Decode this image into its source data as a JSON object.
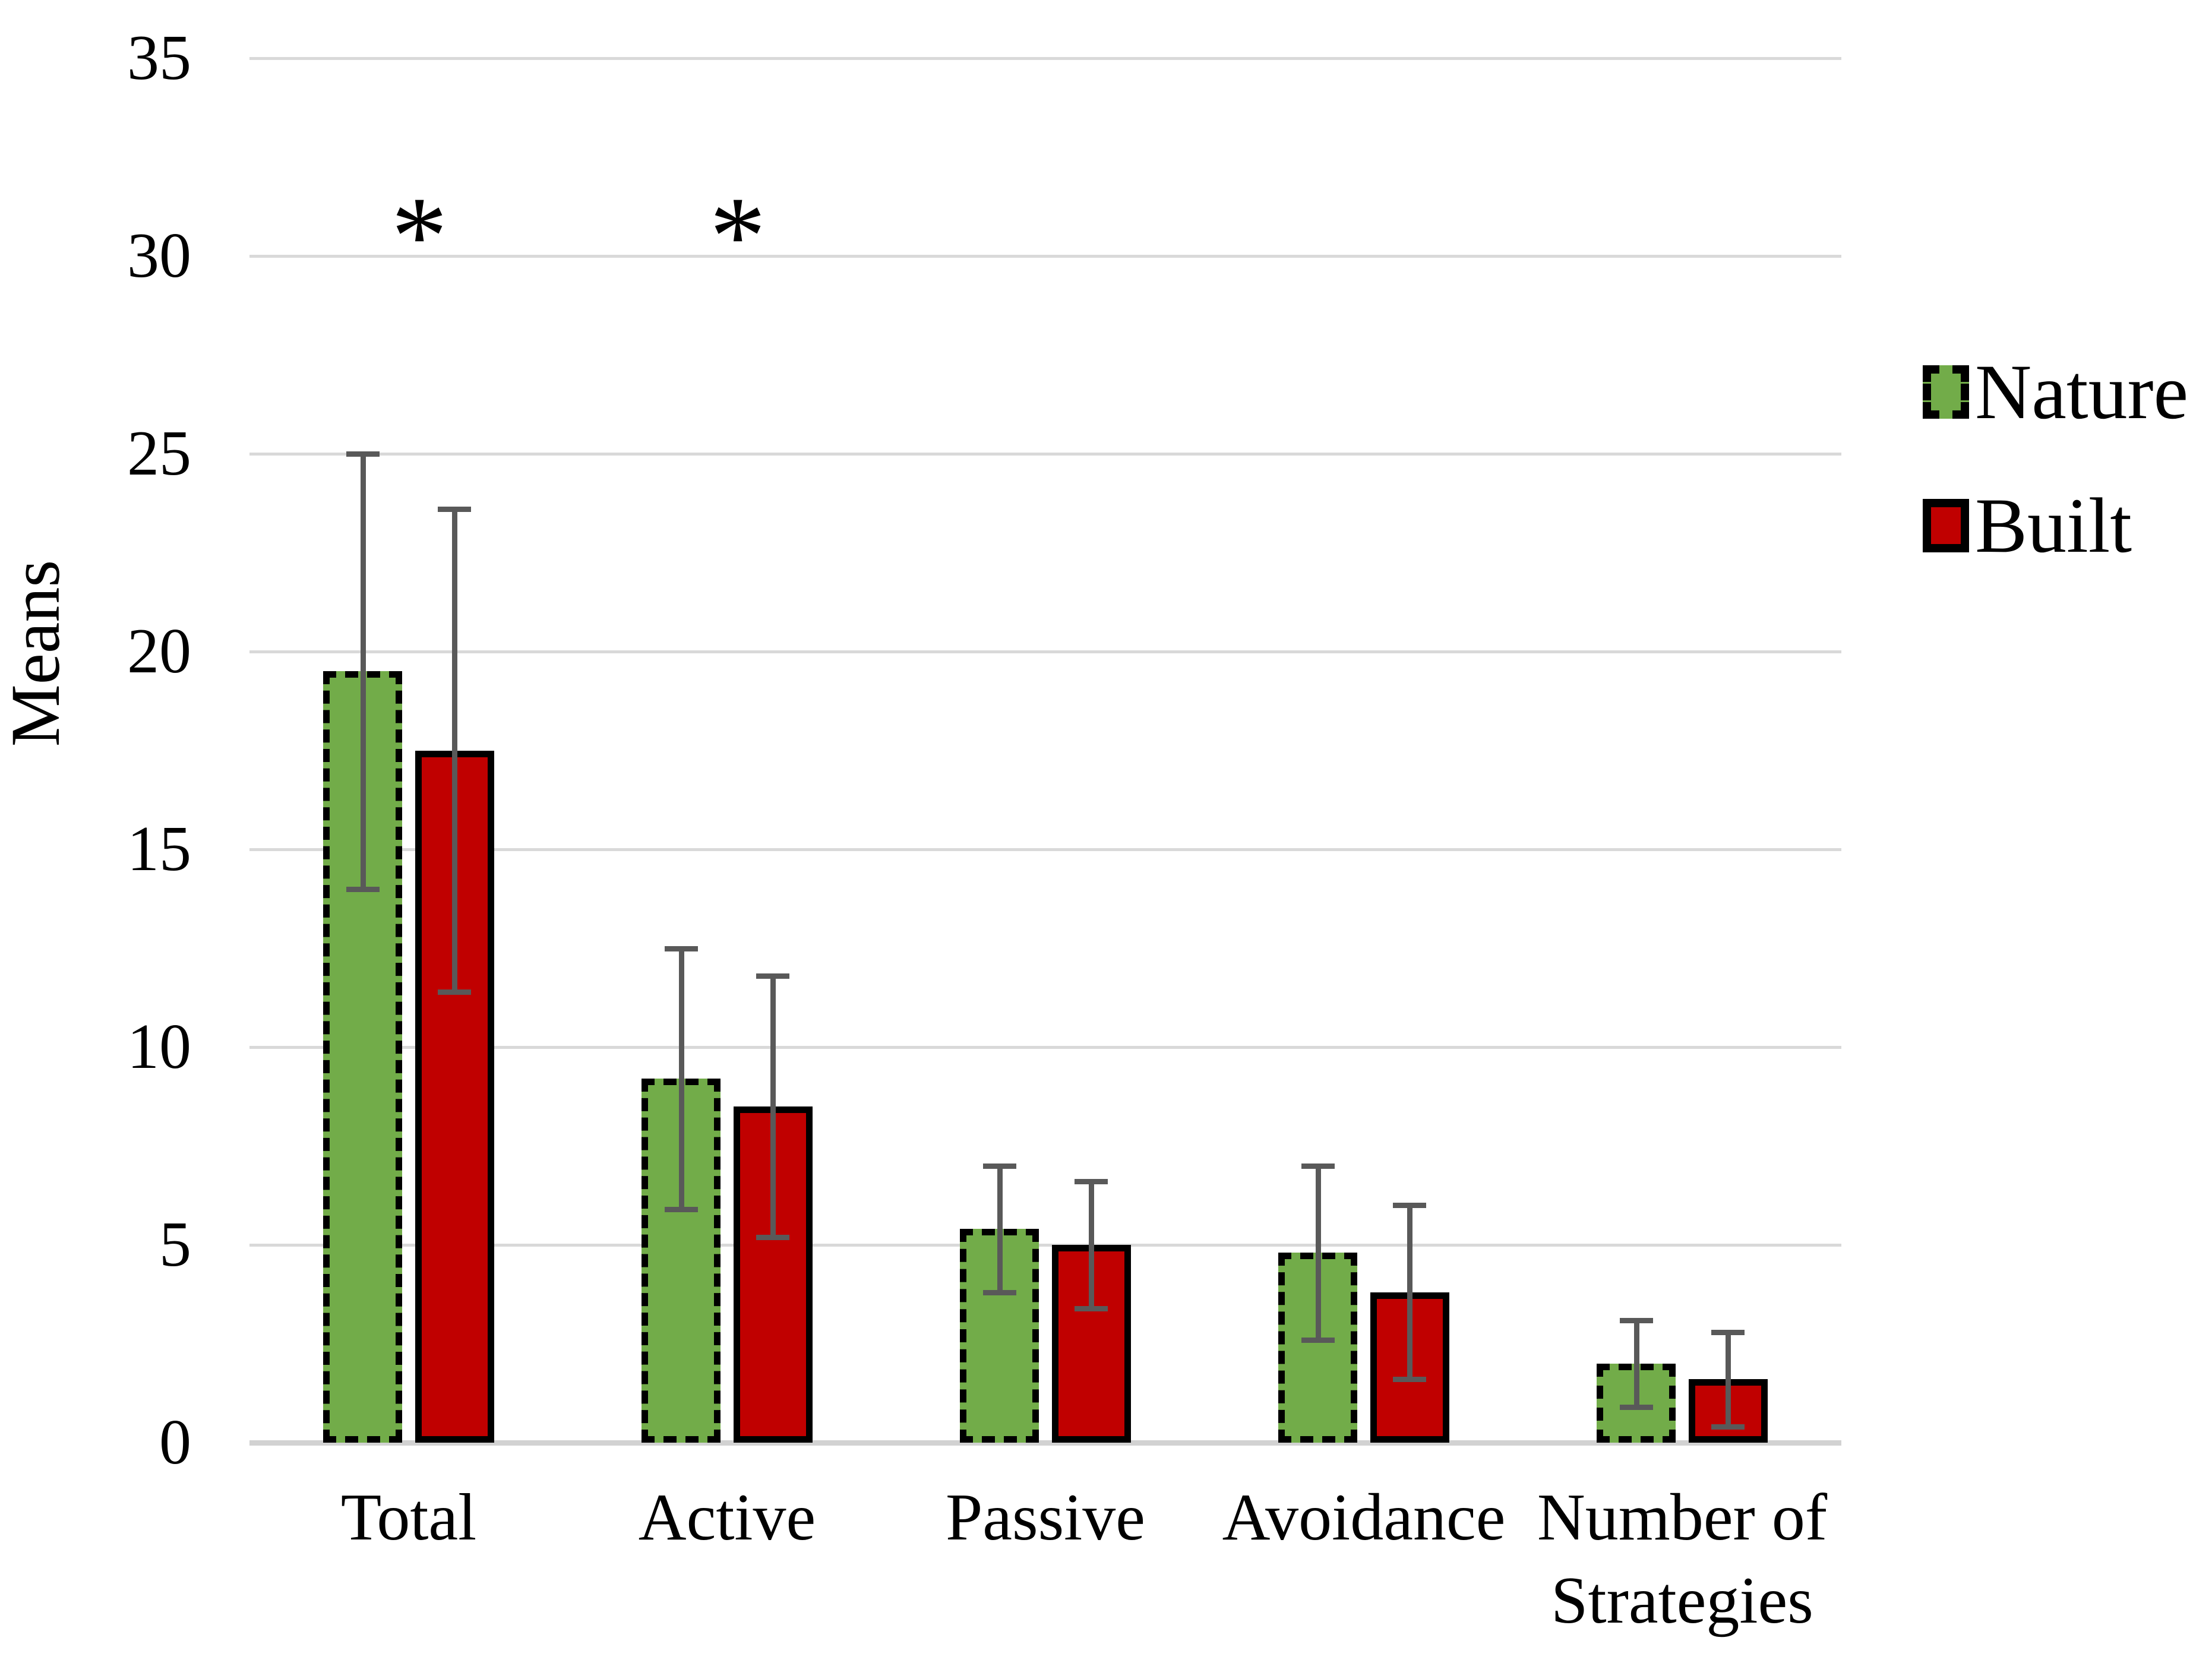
{
  "chart_data": {
    "type": "bar",
    "title": "",
    "ylabel": "Means",
    "xlabel": "",
    "categories": [
      "Total",
      "Active",
      "Passive",
      "Avoidance",
      "Number of Strategies"
    ],
    "series": [
      {
        "name": "Nature",
        "color": "#72AC49",
        "border_color": "#000000",
        "border_style": "dashed",
        "values": [
          19.5,
          9.2,
          5.4,
          4.8,
          2.0
        ],
        "errors": [
          5.5,
          3.3,
          1.6,
          2.2,
          1.1
        ]
      },
      {
        "name": "Built",
        "color": "#C00000",
        "border_color": "#000000",
        "border_style": "solid",
        "values": [
          17.5,
          8.5,
          5.0,
          3.8,
          1.6
        ],
        "errors": [
          6.1,
          3.3,
          1.6,
          2.2,
          1.2
        ]
      }
    ],
    "significance": {
      "symbol": "*",
      "flags": [
        true,
        true,
        false,
        false,
        false
      ]
    },
    "y_axis": {
      "min": 0,
      "max": 35,
      "step": 5,
      "ticks": [
        35,
        30,
        25,
        20,
        15,
        10,
        5,
        0
      ]
    },
    "grid": true,
    "legend_position": "right",
    "error_bar_color": "#595959",
    "gridline_color": "#d9d9d9"
  }
}
